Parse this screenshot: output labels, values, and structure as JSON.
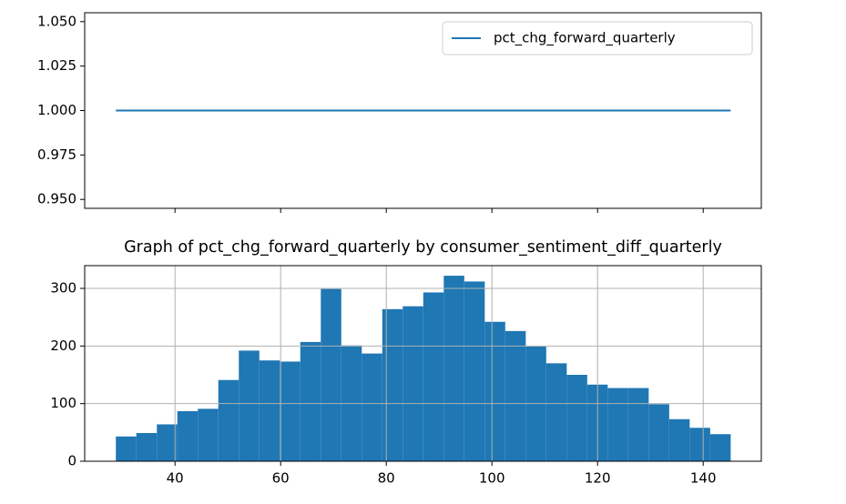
{
  "chart_data": [
    {
      "type": "line",
      "x": [
        28.8,
        145.2
      ],
      "series": [
        {
          "name": "pct_chg_forward_quarterly",
          "color": "#1f77b4",
          "values": [
            1,
            1
          ]
        }
      ],
      "xlim": [
        22.9,
        151.0
      ],
      "xticks": [
        40,
        60,
        80,
        100,
        120,
        140
      ],
      "ylim": [
        0.945,
        1.055
      ],
      "yticks": [
        {
          "value": 0.95,
          "label": "0.950"
        },
        {
          "value": 0.975,
          "label": "0.975"
        },
        {
          "value": 1,
          "label": "1.000"
        },
        {
          "value": 1.025,
          "label": "1.025"
        },
        {
          "value": 1.05,
          "label": "1.050"
        }
      ],
      "legend": "upper right",
      "grid": false
    },
    {
      "type": "histogram",
      "title": "Graph of pct_chg_forward_quarterly by consumer_sentiment_diff_quarterly",
      "bins": [
        28.8,
        32.68,
        36.56,
        40.44,
        44.32,
        48.2,
        52.08,
        55.96,
        59.84,
        63.72,
        67.6,
        71.48,
        75.36,
        79.24,
        83.12,
        87.0,
        90.88,
        94.76,
        98.64,
        102.52,
        106.4,
        110.28,
        114.16,
        118.04,
        121.92,
        125.8,
        129.68,
        133.56,
        137.44,
        141.32,
        145.2
      ],
      "values": [
        43,
        49,
        64,
        87,
        91,
        141,
        192,
        175,
        173,
        207,
        299,
        201,
        187,
        264,
        269,
        293,
        322,
        312,
        242,
        226,
        199,
        170,
        150,
        133,
        127,
        127,
        99,
        73,
        58,
        47
      ],
      "color": "#1f77b4",
      "xlim": [
        22.9,
        151.0
      ],
      "xticks": [
        40,
        60,
        80,
        100,
        120,
        140
      ],
      "ylim": [
        0,
        339.5
      ],
      "yticks": [
        0,
        100,
        200,
        300
      ],
      "grid": true
    }
  ]
}
